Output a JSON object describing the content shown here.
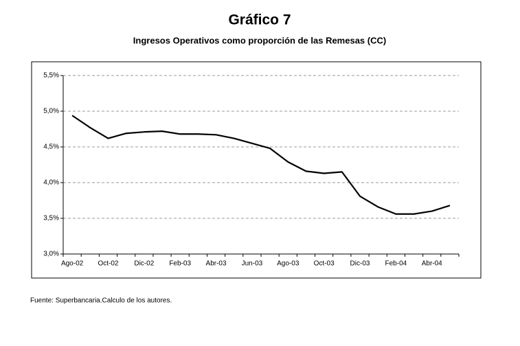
{
  "chart_data": {
    "type": "line",
    "title": "Gráfico 7",
    "subtitle": "Ingresos Operativos como proporción de las Remesas (CC)",
    "source": "Fuente: Superbancaria.Calculo de los autores.",
    "categories": [
      "Ago-02",
      null,
      "Oct-02",
      null,
      "Dic-02",
      null,
      "Feb-03",
      null,
      "Abr-03",
      null,
      "Jun-03",
      null,
      "Ago-03",
      null,
      "Oct-03",
      null,
      "Dic-03",
      null,
      "Feb-04",
      null,
      "Abr-04",
      null
    ],
    "values": [
      4.94,
      4.77,
      4.62,
      4.69,
      4.71,
      4.72,
      4.68,
      4.68,
      4.67,
      4.62,
      4.55,
      4.48,
      4.29,
      4.16,
      4.13,
      4.15,
      3.81,
      3.66,
      3.56,
      3.56,
      3.6,
      3.68
    ],
    "color": "#000000",
    "ylim": [
      3,
      5.5
    ],
    "yticks": [
      {
        "value": 3,
        "label": "3,0%"
      },
      {
        "value": 3.5,
        "label": "3,5%"
      },
      {
        "value": 4,
        "label": "4,0%"
      },
      {
        "value": 4.5,
        "label": "4,5%"
      },
      {
        "value": 5,
        "label": "5,0%"
      },
      {
        "value": 5.5,
        "label": "5,5%"
      }
    ],
    "grid": true
  }
}
